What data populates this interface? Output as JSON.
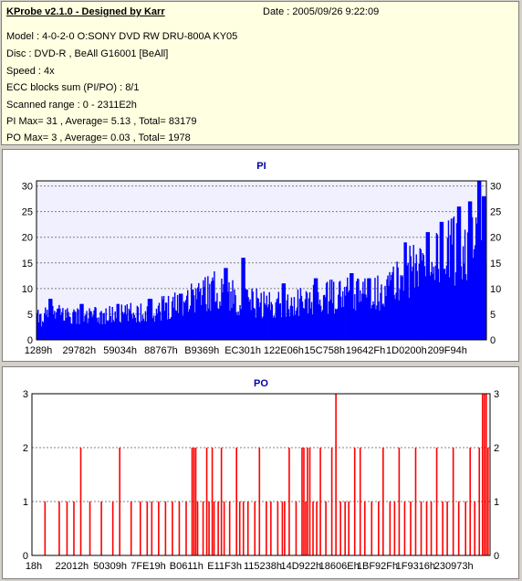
{
  "info": {
    "title": "KProbe v2.1.0 - Designed by Karr",
    "date": "Date : 2005/09/26 9:22:09",
    "model": "Model : 4-0-2-0 O:SONY    DVD RW DRU-800A  KY05",
    "disc": "Disc : DVD-R , BeAll G16001 [BeAll]",
    "speed": "Speed : 4x",
    "ecc": "ECC blocks sum (PI/PO) : 8/1",
    "range": "Scanned range : 0 - 2311E2h",
    "pi_stats": "PI Max= 31 , Average= 5.13 , Total= 83179",
    "po_stats": "PO Max= 3 , Average= 0.03 , Total= 1978"
  },
  "colors": {
    "pi": "#0000ff",
    "po": "#ff0000",
    "title_pi": "#0000aa",
    "title_po": "#0000aa",
    "grid": "#808080",
    "plot_bg_pi": "#f0f0ff",
    "plot_bg_po": "#ffffff"
  },
  "chart_data": [
    {
      "type": "bar",
      "title": "PI",
      "ylim": [
        0,
        31
      ],
      "yticks": [
        0,
        5,
        10,
        15,
        20,
        25,
        30
      ],
      "xticks": [
        "1289h",
        "29782h",
        "59034h",
        "88767h",
        "B9369h",
        "EC301h",
        "122E06h",
        "15C758h",
        "19642Fh",
        "1D0200h",
        "209F94h"
      ],
      "grid": true,
      "profile": [
        [
          0,
          4.5
        ],
        [
          0.05,
          5.5
        ],
        [
          0.1,
          5
        ],
        [
          0.15,
          5
        ],
        [
          0.2,
          5.5
        ],
        [
          0.25,
          6
        ],
        [
          0.3,
          7.5
        ],
        [
          0.35,
          9.5
        ],
        [
          0.4,
          10.5
        ],
        [
          0.45,
          8.5
        ],
        [
          0.5,
          7.5
        ],
        [
          0.55,
          7.5
        ],
        [
          0.6,
          8
        ],
        [
          0.65,
          9
        ],
        [
          0.7,
          9.5
        ],
        [
          0.75,
          9.5
        ],
        [
          0.8,
          12
        ],
        [
          0.85,
          16
        ],
        [
          0.9,
          17.5
        ],
        [
          0.95,
          20
        ],
        [
          1,
          18
        ]
      ],
      "peaks": [
        [
          0.03,
          8
        ],
        [
          0.1,
          7
        ],
        [
          0.18,
          7
        ],
        [
          0.25,
          8
        ],
        [
          0.32,
          9
        ],
        [
          0.42,
          14
        ],
        [
          0.46,
          16
        ],
        [
          0.55,
          11
        ],
        [
          0.62,
          12
        ],
        [
          0.7,
          13
        ],
        [
          0.74,
          12
        ],
        [
          0.82,
          19
        ],
        [
          0.87,
          21
        ],
        [
          0.9,
          23
        ],
        [
          0.94,
          26
        ],
        [
          0.965,
          27
        ],
        [
          0.985,
          31
        ],
        [
          0.995,
          28
        ]
      ],
      "bars": 490
    },
    {
      "type": "bar",
      "title": "PO",
      "ylim": [
        0,
        3
      ],
      "yticks": [
        0,
        1,
        2,
        3
      ],
      "xticks": [
        "18h",
        "22012h",
        "50309h",
        "7FE19h",
        "B0611h",
        "E11F3h",
        "115238h",
        "14D922h",
        "18606Eh",
        "1BF92Fh",
        "1F9316h",
        "230973h"
      ],
      "grid": true,
      "spikes": [
        [
          0.027,
          1
        ],
        [
          0.058,
          1
        ],
        [
          0.075,
          1
        ],
        [
          0.09,
          1
        ],
        [
          0.105,
          2
        ],
        [
          0.125,
          1
        ],
        [
          0.15,
          1
        ],
        [
          0.175,
          1
        ],
        [
          0.19,
          2
        ],
        [
          0.215,
          1
        ],
        [
          0.235,
          1
        ],
        [
          0.25,
          1
        ],
        [
          0.26,
          1
        ],
        [
          0.275,
          1
        ],
        [
          0.29,
          1
        ],
        [
          0.305,
          1
        ],
        [
          0.32,
          1
        ],
        [
          0.335,
          1
        ],
        [
          0.348,
          2
        ],
        [
          0.352,
          2
        ],
        [
          0.356,
          2
        ],
        [
          0.36,
          1
        ],
        [
          0.372,
          1
        ],
        [
          0.38,
          2
        ],
        [
          0.385,
          1
        ],
        [
          0.392,
          2
        ],
        [
          0.396,
          1
        ],
        [
          0.405,
          1
        ],
        [
          0.412,
          2
        ],
        [
          0.418,
          1
        ],
        [
          0.43,
          1
        ],
        [
          0.445,
          2
        ],
        [
          0.452,
          1
        ],
        [
          0.46,
          1
        ],
        [
          0.47,
          1
        ],
        [
          0.485,
          1
        ],
        [
          0.495,
          2
        ],
        [
          0.51,
          1
        ],
        [
          0.52,
          1
        ],
        [
          0.535,
          1
        ],
        [
          0.545,
          1
        ],
        [
          0.55,
          1
        ],
        [
          0.56,
          2
        ],
        [
          0.575,
          1
        ],
        [
          0.588,
          2
        ],
        [
          0.592,
          2
        ],
        [
          0.596,
          1
        ],
        [
          0.6,
          2
        ],
        [
          0.605,
          2
        ],
        [
          0.612,
          1
        ],
        [
          0.62,
          1
        ],
        [
          0.628,
          2
        ],
        [
          0.64,
          1
        ],
        [
          0.653,
          2
        ],
        [
          0.662,
          3
        ],
        [
          0.672,
          1
        ],
        [
          0.682,
          1
        ],
        [
          0.69,
          1
        ],
        [
          0.703,
          2
        ],
        [
          0.715,
          2
        ],
        [
          0.725,
          1
        ],
        [
          0.74,
          1
        ],
        [
          0.755,
          1
        ],
        [
          0.765,
          2
        ],
        [
          0.78,
          1
        ],
        [
          0.79,
          1
        ],
        [
          0.8,
          2
        ],
        [
          0.812,
          1
        ],
        [
          0.825,
          1
        ],
        [
          0.836,
          2
        ],
        [
          0.848,
          1
        ],
        [
          0.86,
          1
        ],
        [
          0.87,
          1
        ],
        [
          0.882,
          2
        ],
        [
          0.895,
          1
        ],
        [
          0.905,
          1
        ],
        [
          0.918,
          2
        ],
        [
          0.93,
          1
        ],
        [
          0.945,
          1
        ],
        [
          0.955,
          2
        ],
        [
          0.965,
          1
        ],
        [
          0.975,
          2
        ],
        [
          0.982,
          3
        ],
        [
          0.986,
          3
        ],
        [
          0.99,
          3
        ],
        [
          0.994,
          2
        ]
      ]
    }
  ]
}
